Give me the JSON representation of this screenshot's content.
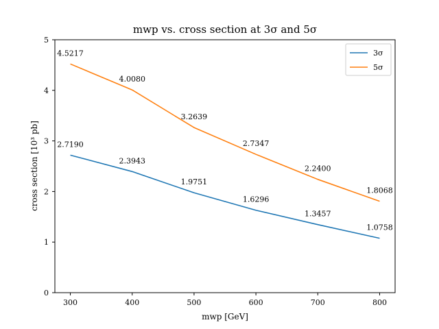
{
  "chart_data": {
    "type": "line",
    "title": "mwp vs. cross section at 3σ and 5σ",
    "xlabel": "mwp [GeV]",
    "ylabel": "cross section [10³ pb]",
    "x": [
      300,
      400,
      500,
      600,
      700,
      800
    ],
    "xticks": [
      300,
      400,
      500,
      600,
      700,
      800
    ],
    "yticks": [
      0,
      1,
      2,
      3,
      4,
      5
    ],
    "xlim": [
      275,
      825
    ],
    "ylim": [
      0,
      5
    ],
    "grid": false,
    "legend_position": "top-right",
    "series": [
      {
        "name": "3σ",
        "color": "#1f77b4",
        "values": [
          2.719,
          2.3943,
          1.9751,
          1.6296,
          1.3457,
          1.0758
        ],
        "labels": [
          "2.7190",
          "2.3943",
          "1.9751",
          "1.6296",
          "1.3457",
          "1.0758"
        ]
      },
      {
        "name": "5σ",
        "color": "#ff7f0e",
        "values": [
          4.5217,
          4.008,
          3.2639,
          2.7347,
          2.24,
          1.8068
        ],
        "labels": [
          "4.5217",
          "4.0080",
          "3.2639",
          "2.7347",
          "2.2400",
          "1.8068"
        ]
      }
    ]
  }
}
